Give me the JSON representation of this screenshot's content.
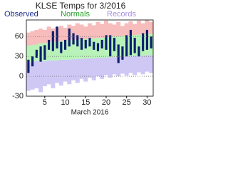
{
  "chart_data": {
    "type": "range_bar",
    "title": "KLSE Temps for 3/2016",
    "xlabel": "March 2016",
    "x": [
      1,
      2,
      3,
      4,
      5,
      6,
      7,
      8,
      9,
      10,
      11,
      12,
      13,
      14,
      15,
      16,
      17,
      18,
      19,
      20,
      21,
      22,
      23,
      24,
      25,
      26,
      27,
      28,
      29,
      30,
      31
    ],
    "xlim": [
      0.5,
      31.5
    ],
    "xticks": [
      5,
      10,
      15,
      20,
      25,
      30
    ],
    "ylim": [
      -30,
      85
    ],
    "yticks": [
      -30,
      0,
      30,
      60
    ],
    "grid": true,
    "series": [
      {
        "name": "Records",
        "color": "#f7bcbc",
        "part": "high",
        "low": [
          46,
          47,
          48,
          50,
          50,
          51,
          52,
          52,
          53,
          54,
          54,
          55,
          55,
          56,
          56,
          57,
          57,
          58,
          58,
          59,
          59,
          60,
          60,
          61,
          61,
          62,
          62,
          63,
          63,
          64,
          64
        ],
        "high": [
          66,
          68,
          70,
          72,
          70,
          75,
          72,
          74,
          76,
          73,
          78,
          76,
          80,
          78,
          75,
          80,
          77,
          82,
          79,
          84,
          80,
          78,
          82,
          76,
          80,
          83,
          79,
          84,
          80,
          85,
          82
        ]
      },
      {
        "name": "Records",
        "color": "#cfc8f5",
        "part": "low",
        "low": [
          -22,
          -20,
          -18,
          -24,
          -15,
          -12,
          -18,
          -10,
          -14,
          -8,
          -12,
          -6,
          -10,
          -4,
          -8,
          -2,
          -6,
          0,
          -4,
          2,
          -2,
          3,
          0,
          4,
          1,
          5,
          2,
          6,
          3,
          7,
          5
        ],
        "high": [
          22,
          22,
          23,
          23,
          23,
          24,
          24,
          24,
          25,
          25,
          25,
          26,
          26,
          26,
          27,
          27,
          27,
          28,
          28,
          28,
          29,
          29,
          29,
          30,
          30,
          30,
          31,
          31,
          31,
          32,
          32
        ]
      },
      {
        "name": "Normals",
        "color": "#b8f2b8",
        "low": [
          22,
          22,
          23,
          23,
          23,
          24,
          24,
          24,
          25,
          25,
          25,
          26,
          26,
          26,
          27,
          27,
          27,
          28,
          28,
          28,
          29,
          29,
          29,
          30,
          30,
          30,
          31,
          31,
          31,
          32,
          32
        ],
        "high": [
          46,
          47,
          48,
          50,
          50,
          51,
          52,
          52,
          53,
          54,
          54,
          55,
          55,
          56,
          56,
          57,
          57,
          58,
          58,
          59,
          59,
          60,
          60,
          61,
          61,
          62,
          62,
          63,
          63,
          64,
          64
        ]
      },
      {
        "name": "Observed",
        "color": "#0b1f6e",
        "low": [
          5,
          15,
          28,
          22,
          25,
          40,
          38,
          42,
          35,
          40,
          45,
          48,
          45,
          40,
          42,
          45,
          40,
          38,
          42,
          40,
          30,
          38,
          20,
          25,
          30,
          32,
          35,
          30,
          38,
          40,
          42
        ],
        "high": [
          25,
          30,
          40,
          45,
          47,
          55,
          68,
          75,
          52,
          55,
          72,
          65,
          62,
          58,
          55,
          58,
          52,
          50,
          55,
          62,
          62,
          58,
          48,
          45,
          62,
          70,
          58,
          45,
          65,
          70,
          60
        ]
      }
    ]
  }
}
